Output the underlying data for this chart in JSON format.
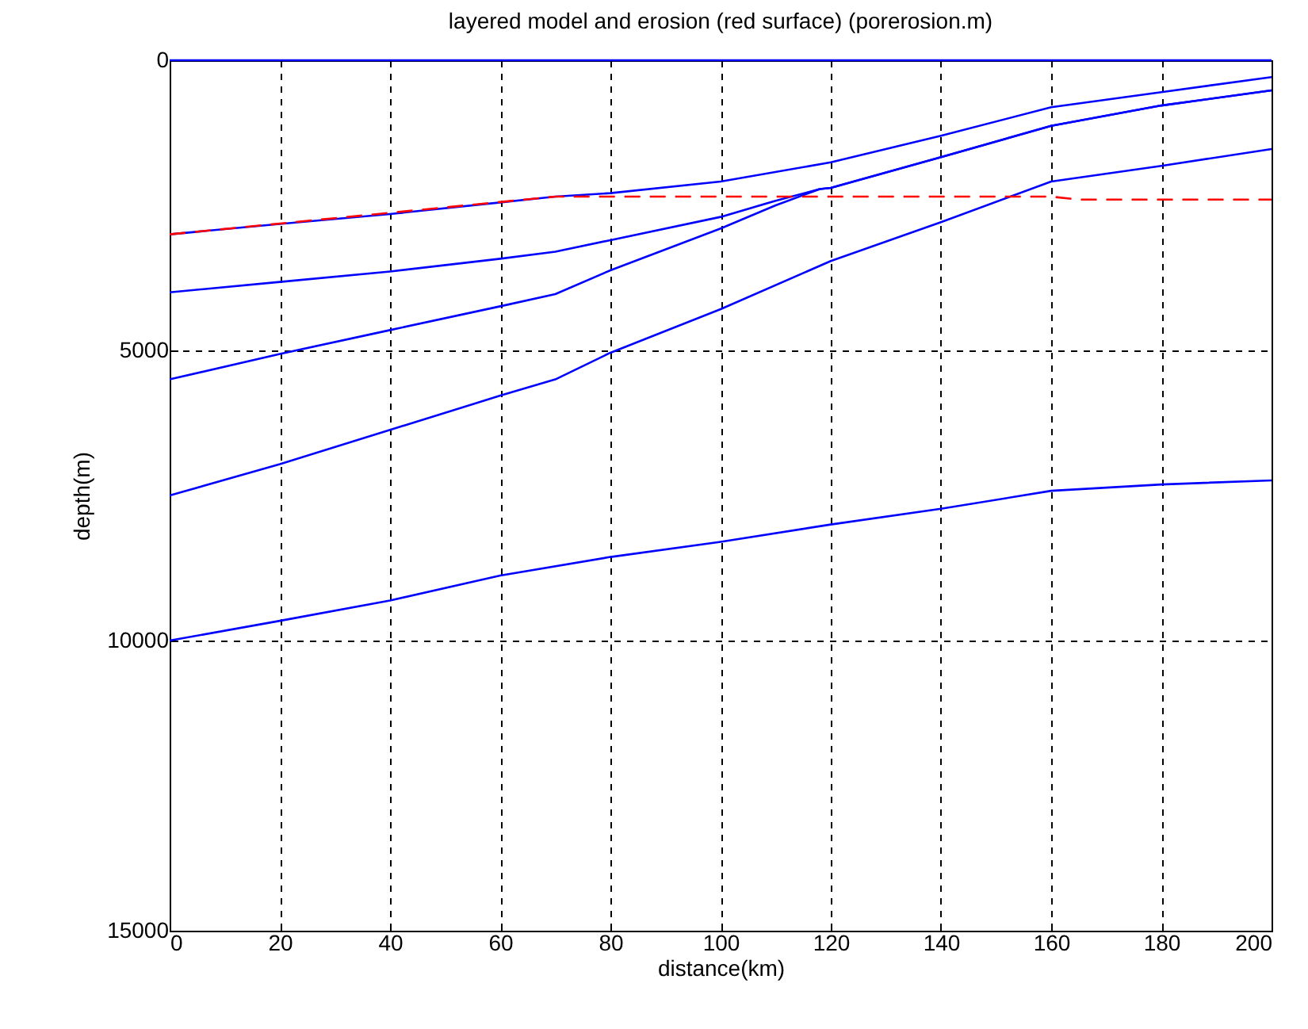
{
  "chart_data": {
    "type": "line",
    "title": "layered model and erosion (red surface)   (porerosion.m)",
    "xlabel": "distance(km)",
    "ylabel": "depth(m)",
    "xlim": [
      0,
      200
    ],
    "xticks": [
      0,
      20,
      40,
      60,
      80,
      100,
      120,
      140,
      160,
      180,
      200
    ],
    "ylim": [
      15000,
      0
    ],
    "yticks": [
      0,
      5000,
      10000,
      15000
    ],
    "grid": true,
    "legend": false,
    "marker": "none",
    "series": [
      {
        "color": "#0000ff",
        "x": [
          0,
          200
        ],
        "values": [
          0,
          0
        ]
      },
      {
        "color": "#0000ff",
        "x": [
          0,
          20,
          40,
          60,
          70,
          80,
          100,
          120,
          140,
          160,
          180,
          200
        ],
        "values": [
          3000,
          2820,
          2650,
          2450,
          2350,
          2290,
          2090,
          1760,
          1300,
          810,
          550,
          290
        ]
      },
      {
        "color": "#0000ff",
        "x": [
          0,
          20,
          40,
          60,
          70,
          80,
          100,
          110,
          118,
          120,
          140,
          160,
          180,
          200
        ],
        "values": [
          4000,
          3820,
          3640,
          3420,
          3300,
          3100,
          2700,
          2420,
          2220,
          2200,
          1670,
          1130,
          780,
          520
        ]
      },
      {
        "color": "#0000ff",
        "x": [
          0,
          20,
          40,
          60,
          70,
          80,
          100,
          110,
          118,
          120,
          140,
          160,
          180,
          200
        ],
        "values": [
          5500,
          5060,
          4650,
          4240,
          4030,
          3620,
          2900,
          2500,
          2220,
          2200,
          1670,
          1130,
          780,
          520
        ]
      },
      {
        "color": "#0000ff",
        "x": [
          0,
          20,
          40,
          60,
          70,
          80,
          100,
          120,
          140,
          160,
          180,
          200
        ],
        "values": [
          7500,
          6960,
          6370,
          5780,
          5500,
          5040,
          4290,
          3460,
          2790,
          2090,
          1820,
          1530
        ]
      },
      {
        "color": "#0000ff",
        "x": [
          0,
          20,
          40,
          60,
          80,
          100,
          120,
          140,
          160,
          180,
          200
        ],
        "values": [
          10000,
          9660,
          9310,
          8880,
          8560,
          8300,
          8000,
          7730,
          7420,
          7310,
          7240
        ]
      },
      {
        "color": "#ff0000",
        "line_style": "dashed",
        "x": [
          0,
          70,
          160,
          165,
          200
        ],
        "values": [
          3000,
          2350,
          2350,
          2400,
          2400
        ]
      }
    ]
  }
}
